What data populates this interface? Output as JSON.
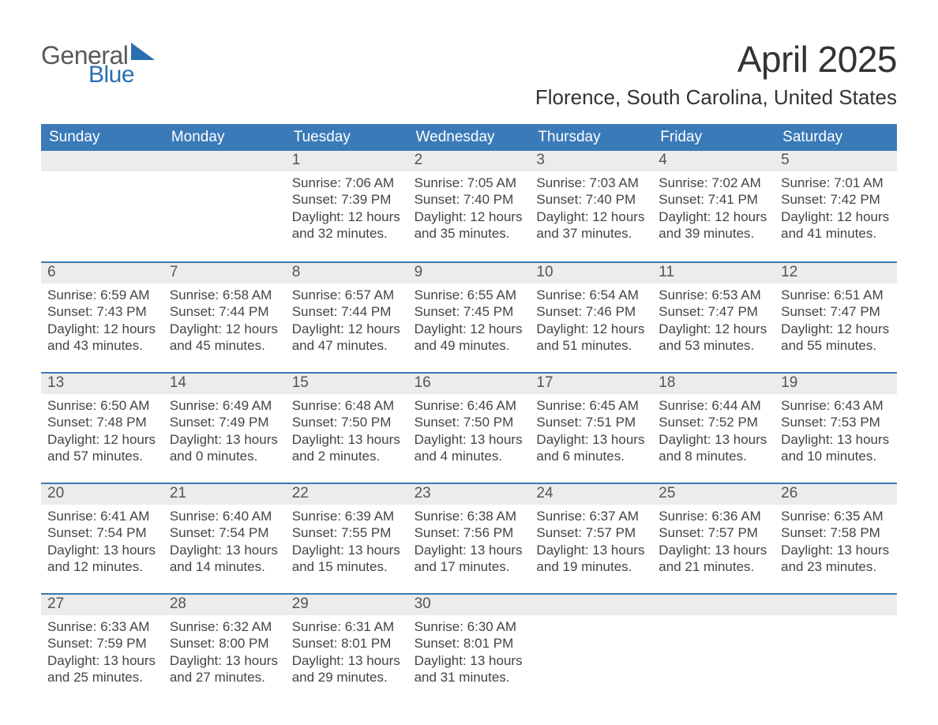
{
  "colors": {
    "header_bg": "#3a7ab8",
    "header_fg": "#ffffff",
    "daynum_bg": "#ececec",
    "daynum_fg": "#555555",
    "row_border": "#3a7ab8",
    "body_fg": "#444444",
    "logo_gray": "#5a5a5a",
    "logo_blue": "#2a6fb0",
    "title_fg": "#333333",
    "page_bg": "#ffffff"
  },
  "logo": {
    "line1": "General",
    "line2": "Blue"
  },
  "title": "April 2025",
  "location": "Florence, South Carolina, United States",
  "weekdays": [
    "Sunday",
    "Monday",
    "Tuesday",
    "Wednesday",
    "Thursday",
    "Friday",
    "Saturday"
  ],
  "weeks": [
    [
      {
        "n": "",
        "sr": "",
        "ss": "",
        "d1": "",
        "d2": ""
      },
      {
        "n": "",
        "sr": "",
        "ss": "",
        "d1": "",
        "d2": ""
      },
      {
        "n": "1",
        "sr": "Sunrise: 7:06 AM",
        "ss": "Sunset: 7:39 PM",
        "d1": "Daylight: 12 hours",
        "d2": "and 32 minutes."
      },
      {
        "n": "2",
        "sr": "Sunrise: 7:05 AM",
        "ss": "Sunset: 7:40 PM",
        "d1": "Daylight: 12 hours",
        "d2": "and 35 minutes."
      },
      {
        "n": "3",
        "sr": "Sunrise: 7:03 AM",
        "ss": "Sunset: 7:40 PM",
        "d1": "Daylight: 12 hours",
        "d2": "and 37 minutes."
      },
      {
        "n": "4",
        "sr": "Sunrise: 7:02 AM",
        "ss": "Sunset: 7:41 PM",
        "d1": "Daylight: 12 hours",
        "d2": "and 39 minutes."
      },
      {
        "n": "5",
        "sr": "Sunrise: 7:01 AM",
        "ss": "Sunset: 7:42 PM",
        "d1": "Daylight: 12 hours",
        "d2": "and 41 minutes."
      }
    ],
    [
      {
        "n": "6",
        "sr": "Sunrise: 6:59 AM",
        "ss": "Sunset: 7:43 PM",
        "d1": "Daylight: 12 hours",
        "d2": "and 43 minutes."
      },
      {
        "n": "7",
        "sr": "Sunrise: 6:58 AM",
        "ss": "Sunset: 7:44 PM",
        "d1": "Daylight: 12 hours",
        "d2": "and 45 minutes."
      },
      {
        "n": "8",
        "sr": "Sunrise: 6:57 AM",
        "ss": "Sunset: 7:44 PM",
        "d1": "Daylight: 12 hours",
        "d2": "and 47 minutes."
      },
      {
        "n": "9",
        "sr": "Sunrise: 6:55 AM",
        "ss": "Sunset: 7:45 PM",
        "d1": "Daylight: 12 hours",
        "d2": "and 49 minutes."
      },
      {
        "n": "10",
        "sr": "Sunrise: 6:54 AM",
        "ss": "Sunset: 7:46 PM",
        "d1": "Daylight: 12 hours",
        "d2": "and 51 minutes."
      },
      {
        "n": "11",
        "sr": "Sunrise: 6:53 AM",
        "ss": "Sunset: 7:47 PM",
        "d1": "Daylight: 12 hours",
        "d2": "and 53 minutes."
      },
      {
        "n": "12",
        "sr": "Sunrise: 6:51 AM",
        "ss": "Sunset: 7:47 PM",
        "d1": "Daylight: 12 hours",
        "d2": "and 55 minutes."
      }
    ],
    [
      {
        "n": "13",
        "sr": "Sunrise: 6:50 AM",
        "ss": "Sunset: 7:48 PM",
        "d1": "Daylight: 12 hours",
        "d2": "and 57 minutes."
      },
      {
        "n": "14",
        "sr": "Sunrise: 6:49 AM",
        "ss": "Sunset: 7:49 PM",
        "d1": "Daylight: 13 hours",
        "d2": "and 0 minutes."
      },
      {
        "n": "15",
        "sr": "Sunrise: 6:48 AM",
        "ss": "Sunset: 7:50 PM",
        "d1": "Daylight: 13 hours",
        "d2": "and 2 minutes."
      },
      {
        "n": "16",
        "sr": "Sunrise: 6:46 AM",
        "ss": "Sunset: 7:50 PM",
        "d1": "Daylight: 13 hours",
        "d2": "and 4 minutes."
      },
      {
        "n": "17",
        "sr": "Sunrise: 6:45 AM",
        "ss": "Sunset: 7:51 PM",
        "d1": "Daylight: 13 hours",
        "d2": "and 6 minutes."
      },
      {
        "n": "18",
        "sr": "Sunrise: 6:44 AM",
        "ss": "Sunset: 7:52 PM",
        "d1": "Daylight: 13 hours",
        "d2": "and 8 minutes."
      },
      {
        "n": "19",
        "sr": "Sunrise: 6:43 AM",
        "ss": "Sunset: 7:53 PM",
        "d1": "Daylight: 13 hours",
        "d2": "and 10 minutes."
      }
    ],
    [
      {
        "n": "20",
        "sr": "Sunrise: 6:41 AM",
        "ss": "Sunset: 7:54 PM",
        "d1": "Daylight: 13 hours",
        "d2": "and 12 minutes."
      },
      {
        "n": "21",
        "sr": "Sunrise: 6:40 AM",
        "ss": "Sunset: 7:54 PM",
        "d1": "Daylight: 13 hours",
        "d2": "and 14 minutes."
      },
      {
        "n": "22",
        "sr": "Sunrise: 6:39 AM",
        "ss": "Sunset: 7:55 PM",
        "d1": "Daylight: 13 hours",
        "d2": "and 15 minutes."
      },
      {
        "n": "23",
        "sr": "Sunrise: 6:38 AM",
        "ss": "Sunset: 7:56 PM",
        "d1": "Daylight: 13 hours",
        "d2": "and 17 minutes."
      },
      {
        "n": "24",
        "sr": "Sunrise: 6:37 AM",
        "ss": "Sunset: 7:57 PM",
        "d1": "Daylight: 13 hours",
        "d2": "and 19 minutes."
      },
      {
        "n": "25",
        "sr": "Sunrise: 6:36 AM",
        "ss": "Sunset: 7:57 PM",
        "d1": "Daylight: 13 hours",
        "d2": "and 21 minutes."
      },
      {
        "n": "26",
        "sr": "Sunrise: 6:35 AM",
        "ss": "Sunset: 7:58 PM",
        "d1": "Daylight: 13 hours",
        "d2": "and 23 minutes."
      }
    ],
    [
      {
        "n": "27",
        "sr": "Sunrise: 6:33 AM",
        "ss": "Sunset: 7:59 PM",
        "d1": "Daylight: 13 hours",
        "d2": "and 25 minutes."
      },
      {
        "n": "28",
        "sr": "Sunrise: 6:32 AM",
        "ss": "Sunset: 8:00 PM",
        "d1": "Daylight: 13 hours",
        "d2": "and 27 minutes."
      },
      {
        "n": "29",
        "sr": "Sunrise: 6:31 AM",
        "ss": "Sunset: 8:01 PM",
        "d1": "Daylight: 13 hours",
        "d2": "and 29 minutes."
      },
      {
        "n": "30",
        "sr": "Sunrise: 6:30 AM",
        "ss": "Sunset: 8:01 PM",
        "d1": "Daylight: 13 hours",
        "d2": "and 31 minutes."
      },
      {
        "n": "",
        "sr": "",
        "ss": "",
        "d1": "",
        "d2": ""
      },
      {
        "n": "",
        "sr": "",
        "ss": "",
        "d1": "",
        "d2": ""
      },
      {
        "n": "",
        "sr": "",
        "ss": "",
        "d1": "",
        "d2": ""
      }
    ]
  ]
}
